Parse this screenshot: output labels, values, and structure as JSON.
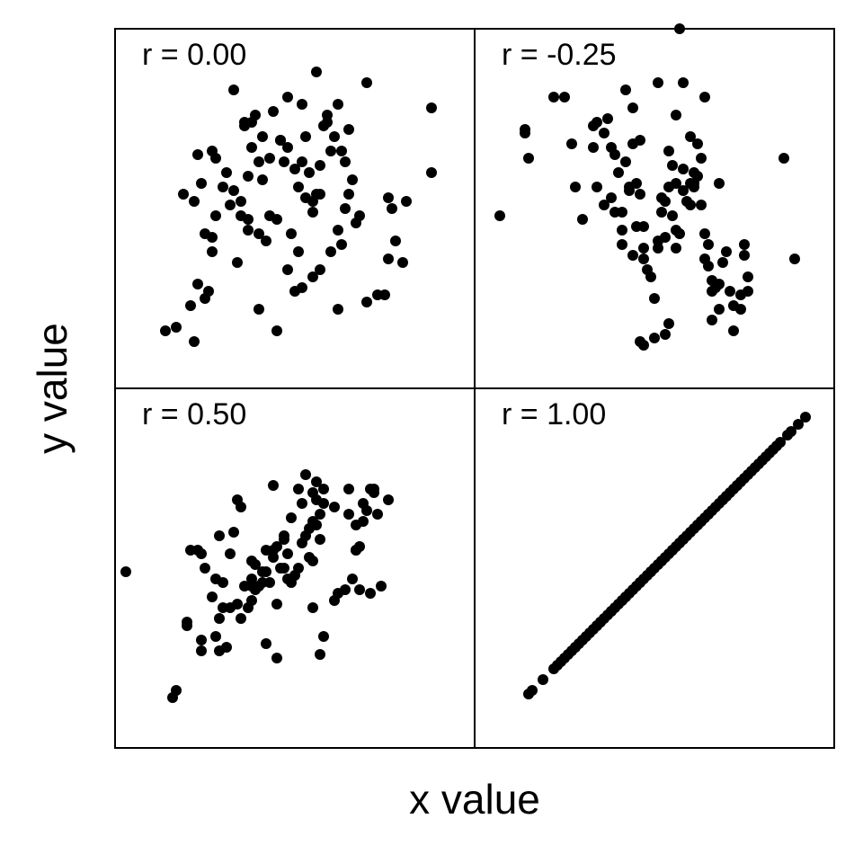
{
  "figure": {
    "xlabel": "x value",
    "ylabel": "y value",
    "point_color": "#000000",
    "frame_color": "#000000"
  },
  "chart_data": [
    {
      "type": "scatter",
      "panel": "top-left",
      "label": "r = 0.00",
      "xlim": [
        0,
        100
      ],
      "ylim": [
        0,
        100
      ],
      "x": [
        22,
        17,
        14,
        21,
        25,
        26,
        23,
        25,
        27,
        19,
        24,
        27,
        31,
        32,
        37,
        33,
        35,
        37,
        40,
        41,
        38,
        36,
        39,
        44,
        46,
        43,
        41,
        45,
        49,
        47,
        48,
        50,
        51,
        53,
        55,
        56,
        54,
        52,
        57,
        60,
        61,
        63,
        58,
        59,
        62,
        66,
        65,
        64,
        67,
        62,
        63,
        60,
        57,
        55,
        52,
        50,
        48,
        42,
        40,
        37,
        35,
        34,
        28,
        23,
        28,
        22,
        55,
        38,
        46,
        65,
        33,
        52,
        70,
        64,
        76,
        77,
        81,
        78,
        88,
        80,
        76,
        88,
        75,
        27,
        62,
        51,
        45,
        68,
        59,
        56,
        53,
        43,
        40,
        30,
        36,
        48,
        70,
        73,
        57
      ],
      "y": [
        13,
        17,
        16,
        23,
        25,
        27,
        29,
        43,
        42,
        54,
        57,
        66,
        60,
        51,
        44,
        55,
        52,
        59,
        63,
        70,
        67,
        73,
        76,
        77,
        69,
        64,
        58,
        47,
        43,
        63,
        67,
        61,
        56,
        53,
        52,
        54,
        60,
        63,
        62,
        66,
        70,
        66,
        73,
        76,
        79,
        58,
        54,
        50,
        46,
        44,
        40,
        38,
        33,
        31,
        28,
        27,
        33,
        41,
        43,
        47,
        48,
        35,
        48,
        65,
        64,
        52,
        49,
        74,
        69,
        72,
        83,
        79,
        85,
        63,
        53,
        50,
        52,
        41,
        60,
        35,
        36,
        78,
        26,
        38,
        22,
        38,
        16,
        48,
        74,
        88,
        70,
        48,
        22,
        56,
        74,
        81,
        24,
        26,
        54
      ]
    },
    {
      "type": "scatter",
      "panel": "top-right",
      "label": "r = -0.25",
      "xlim": [
        0,
        100
      ],
      "ylim": [
        0,
        100
      ],
      "x": [
        14,
        14,
        27,
        15,
        28,
        30,
        22,
        25,
        34,
        37,
        33,
        36,
        33,
        38,
        34,
        36,
        39,
        38,
        41,
        46,
        43,
        40,
        39,
        44,
        46,
        42,
        45,
        45,
        47,
        47,
        44,
        41,
        47,
        48,
        49,
        50,
        51,
        51,
        52,
        52,
        54,
        55,
        54,
        53,
        55,
        56,
        56,
        57,
        58,
        56,
        59,
        58,
        60,
        61,
        61,
        61,
        63,
        62,
        62,
        63,
        64,
        64,
        65,
        65,
        66,
        66,
        67,
        68,
        68,
        69,
        70,
        68,
        60,
        60,
        51,
        42,
        44,
        71,
        72,
        74,
        74,
        75,
        76,
        86,
        76,
        89,
        75,
        72,
        66,
        53,
        47,
        50,
        54,
        46,
        53,
        41,
        43,
        64,
        58,
        56,
        57,
        7
      ],
      "y": [
        71,
        72,
        68,
        64,
        56,
        47,
        81,
        81,
        74,
        75,
        73,
        71,
        67,
        67,
        56,
        51,
        49,
        53,
        49,
        54,
        56,
        60,
        65,
        68,
        69,
        63,
        57,
        45,
        39,
        45,
        37,
        40,
        36,
        33,
        31,
        25,
        39,
        41,
        49,
        53,
        66,
        62,
        56,
        52,
        48,
        44,
        39,
        43,
        55,
        57,
        52,
        61,
        57,
        56,
        57,
        60,
        64,
        68,
        59,
        51,
        43,
        36,
        40,
        34,
        30,
        27,
        28,
        29,
        22,
        35,
        38,
        57,
        51,
        70,
        85,
        83,
        78,
        27,
        23,
        26,
        22,
        40,
        27,
        64,
        31,
        36,
        37,
        16,
        19,
        15,
        12,
        14,
        18,
        13,
        42,
        44,
        55,
        81,
        85,
        76,
        100,
        48
      ]
    },
    {
      "type": "scatter",
      "panel": "bottom-left",
      "label": "r = 0.50",
      "xlim": [
        0,
        100
      ],
      "ylim": [
        0,
        100
      ],
      "x": [
        3,
        16,
        17,
        20,
        20,
        24,
        24,
        28,
        29,
        31,
        29,
        32,
        34,
        35,
        36,
        38,
        40,
        39,
        41,
        42,
        43,
        42,
        44,
        45,
        47,
        48,
        47,
        49,
        50,
        51,
        52,
        53,
        54,
        54,
        55,
        57,
        58,
        55,
        56,
        53,
        51,
        52,
        49,
        47,
        44,
        46,
        41,
        39,
        38,
        38,
        37,
        30,
        27,
        28,
        23,
        21,
        25,
        24,
        33,
        35,
        34,
        32,
        29,
        30,
        38,
        45,
        48,
        55,
        56,
        57,
        56,
        58,
        61,
        65,
        65,
        67,
        67,
        68,
        69,
        70,
        71,
        72,
        69,
        67,
        62,
        61,
        64,
        66,
        68,
        71,
        74,
        76,
        73,
        72,
        58,
        42,
        44,
        55,
        45,
        57
      ],
      "y": [
        49,
        14,
        16,
        35,
        34,
        30,
        27,
        31,
        27,
        28,
        36,
        39,
        40,
        36,
        45,
        41,
        45,
        51,
        49,
        49,
        46,
        55,
        53,
        56,
        58,
        54,
        50,
        46,
        48,
        50,
        57,
        59,
        53,
        61,
        63,
        65,
        68,
        71,
        74,
        76,
        72,
        68,
        64,
        59,
        55,
        50,
        46,
        44,
        45,
        47,
        39,
        39,
        42,
        47,
        55,
        55,
        50,
        54,
        60,
        67,
        69,
        54,
        59,
        46,
        52,
        40,
        47,
        52,
        62,
        58,
        69,
        72,
        67,
        72,
        65,
        62,
        55,
        56,
        63,
        66,
        72,
        71,
        68,
        55,
        43,
        41,
        44,
        47,
        44,
        43,
        45,
        69,
        65,
        72,
        31,
        29,
        73,
        39,
        25,
        26
      ]
    },
    {
      "type": "scatter",
      "panel": "bottom-right",
      "label": "r = 1.00",
      "xlim": [
        0,
        100
      ],
      "ylim": [
        0,
        100
      ],
      "x": [
        15,
        16,
        19,
        22,
        23,
        24,
        25,
        26,
        27,
        28,
        28,
        29,
        30,
        31,
        32,
        33,
        34,
        34,
        35,
        36,
        37,
        38,
        38,
        39,
        40,
        41,
        42,
        42,
        43,
        44,
        45,
        46,
        46,
        47,
        48,
        49,
        50,
        51,
        52,
        52,
        53,
        54,
        55,
        55,
        56,
        57,
        58,
        58,
        59,
        60,
        61,
        62,
        62,
        63,
        64,
        65,
        65,
        66,
        67,
        68,
        69,
        70,
        70,
        71,
        72,
        73,
        73,
        74,
        75,
        76,
        77,
        78,
        79,
        80,
        81,
        82,
        83,
        84,
        85,
        87,
        88,
        90,
        92,
        35,
        41,
        49,
        57,
        63,
        69
      ],
      "y": [
        15,
        16,
        19,
        22,
        23,
        24,
        25,
        26,
        27,
        28,
        28,
        29,
        30,
        31,
        32,
        33,
        34,
        34,
        35,
        36,
        37,
        38,
        38,
        39,
        40,
        41,
        42,
        42,
        43,
        44,
        45,
        46,
        46,
        47,
        48,
        49,
        50,
        51,
        52,
        52,
        53,
        54,
        55,
        55,
        56,
        57,
        58,
        58,
        59,
        60,
        61,
        62,
        62,
        63,
        64,
        65,
        65,
        66,
        67,
        68,
        69,
        70,
        70,
        71,
        72,
        73,
        73,
        74,
        75,
        76,
        77,
        78,
        79,
        80,
        81,
        82,
        83,
        84,
        85,
        87,
        88,
        90,
        92,
        35,
        41,
        49,
        57,
        63,
        69
      ]
    }
  ]
}
